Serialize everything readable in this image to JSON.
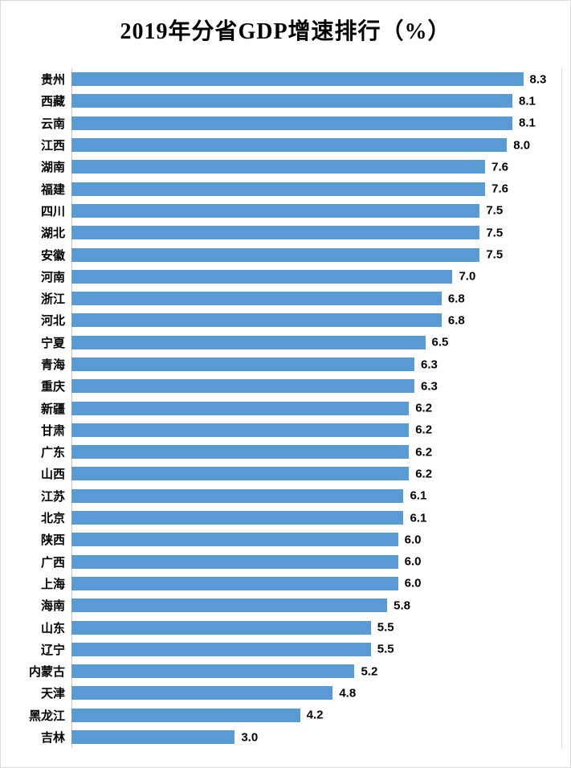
{
  "chart_data": {
    "type": "bar",
    "orientation": "horizontal",
    "title": "2019年分省GDP增速排行（%）",
    "categories": [
      "贵州",
      "西藏",
      "云南",
      "江西",
      "湖南",
      "福建",
      "四川",
      "湖北",
      "安徽",
      "河南",
      "浙江",
      "河北",
      "宁夏",
      "青海",
      "重庆",
      "新疆",
      "甘肃",
      "广东",
      "山西",
      "江苏",
      "北京",
      "陕西",
      "广西",
      "上海",
      "海南",
      "山东",
      "辽宁",
      "内蒙古",
      "天津",
      "黑龙江",
      "吉林"
    ],
    "values": [
      8.3,
      8.1,
      8.1,
      8.0,
      7.6,
      7.6,
      7.5,
      7.5,
      7.5,
      7.0,
      6.8,
      6.8,
      6.5,
      6.3,
      6.3,
      6.2,
      6.2,
      6.2,
      6.2,
      6.1,
      6.1,
      6.0,
      6.0,
      6.0,
      5.8,
      5.5,
      5.5,
      5.2,
      4.8,
      4.2,
      3.0
    ],
    "xlim": [
      0,
      9
    ],
    "xlabel": "",
    "ylabel": "",
    "legend": "none",
    "grid": "right-boundary-line-only",
    "value_labels": "end-of-bar, one decimal"
  },
  "colors": {
    "bar": "#5B9BD5",
    "title_text": "#000000",
    "label_text": "#000000",
    "axis_line": "#C9C9C9",
    "frame_border": "#D9D9D9",
    "background": "#FFFFFF"
  }
}
